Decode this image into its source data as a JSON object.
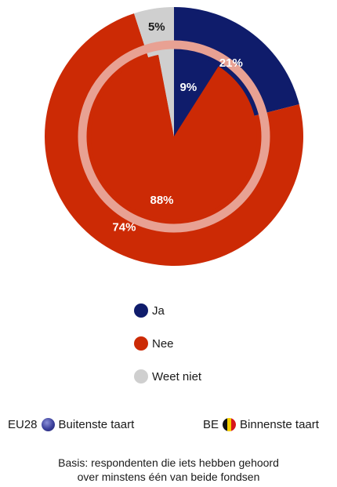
{
  "chart_data": {
    "type": "pie",
    "categories": [
      "Ja",
      "Nee",
      "Weet niet"
    ],
    "colors": [
      "#0f1c6b",
      "#cc2a05",
      "#cfcfcf"
    ],
    "series": [
      {
        "name": "EU28",
        "values": [
          21,
          74,
          5
        ],
        "labels": [
          "21%",
          "74%",
          "5%"
        ]
      },
      {
        "name": "BE",
        "values": [
          9,
          88,
          3
        ],
        "labels": [
          "9%",
          "88%",
          ""
        ]
      }
    ]
  },
  "legend": {
    "items": [
      {
        "label": "Ja",
        "color": "#0f1c6b"
      },
      {
        "label": "Nee",
        "color": "#cc2a05"
      },
      {
        "label": "Weet niet",
        "color": "#cfcfcf"
      }
    ]
  },
  "keys": {
    "outer_code": "EU28",
    "outer_label": "Buitenste taart",
    "inner_code": "BE",
    "inner_label": "Binnenste taart"
  },
  "note": {
    "line1": "Basis: respondenten die iets hebben gehoord",
    "line2": "over minstens één van beide fondsen"
  }
}
